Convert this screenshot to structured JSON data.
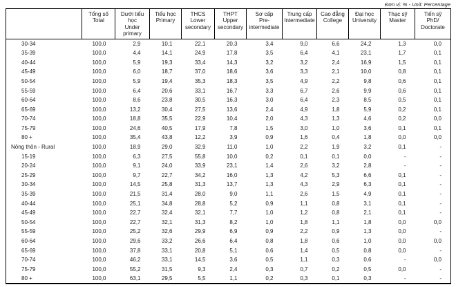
{
  "unit_label": "Đơn vị: % - Unit: Percentage",
  "table": {
    "corner": "",
    "header": [
      "Tổng số\nTotal",
      "Dưới tiểu học\nUnder\nprimary",
      "Tiểu học\nPrimary",
      "THCS\nLower\nsecondary",
      "THPT\nUpper\nsecondary",
      "Sơ cấp\nPre-\nintermediate",
      "Trung cấp\nIntermediate",
      "Cao đẳng\nCollege",
      "Đại học\nUniversity",
      "Thạc sỹ\nMaster",
      "Tiến sỹ\nPhD/\nDoctorate"
    ],
    "rows": [
      {
        "label": "30-34",
        "section": false,
        "values": [
          "100,0",
          "2,9",
          "10,1",
          "22,1",
          "20,3",
          "3,4",
          "9,0",
          "6,6",
          "24,2",
          "1,3",
          "0,0"
        ]
      },
      {
        "label": "35-39",
        "section": false,
        "values": [
          "100,0",
          "4,4",
          "14,1",
          "24,9",
          "17,8",
          "3,5",
          "6,4",
          "4,1",
          "23,1",
          "1,7",
          "0,1"
        ]
      },
      {
        "label": "40-44",
        "section": false,
        "values": [
          "100,0",
          "5,9",
          "19,3",
          "33,4",
          "14,3",
          "3,2",
          "3,2",
          "2,4",
          "16,9",
          "1,5",
          "0,1"
        ]
      },
      {
        "label": "45-49",
        "section": false,
        "values": [
          "100,0",
          "6,0",
          "18,7",
          "37,0",
          "18,6",
          "3,6",
          "3,3",
          "2,1",
          "10,0",
          "0,8",
          "0,1"
        ]
      },
      {
        "label": "50-54",
        "section": false,
        "values": [
          "100,0",
          "5,9",
          "19,4",
          "35,3",
          "18,3",
          "3,5",
          "4,9",
          "2,2",
          "9,8",
          "0,6",
          "0,1"
        ]
      },
      {
        "label": "55-59",
        "section": false,
        "values": [
          "100,0",
          "6,4",
          "20,6",
          "33,1",
          "16,7",
          "3,3",
          "6,7",
          "2,6",
          "9,9",
          "0,6",
          "0,1"
        ]
      },
      {
        "label": "60-64",
        "section": false,
        "values": [
          "100,0",
          "8,6",
          "23,8",
          "30,5",
          "16,3",
          "3,0",
          "6,4",
          "2,3",
          "8,5",
          "0,5",
          "0,1"
        ]
      },
      {
        "label": "65-69",
        "section": false,
        "values": [
          "100,0",
          "13,2",
          "30,4",
          "27,5",
          "13,6",
          "2,4",
          "4,9",
          "1,8",
          "5,9",
          "0,2",
          "0,1"
        ]
      },
      {
        "label": "70-74",
        "section": false,
        "values": [
          "100,0",
          "18,8",
          "35,5",
          "22,9",
          "10,4",
          "2,0",
          "4,3",
          "1,3",
          "4,6",
          "0,2",
          "0,0"
        ]
      },
      {
        "label": "75-79",
        "section": false,
        "values": [
          "100,0",
          "24,6",
          "40,5",
          "17,9",
          "7,8",
          "1,5",
          "3,0",
          "1,0",
          "3,6",
          "0,1",
          "0,1"
        ]
      },
      {
        "label": "80 +",
        "section": false,
        "values": [
          "100,0",
          "35,4",
          "43,8",
          "12,2",
          "3,9",
          "0,9",
          "1,6",
          "0,4",
          "1,8",
          "0,0",
          "0,0"
        ]
      },
      {
        "label": "Nông thôn - Rural",
        "section": true,
        "values": [
          "100,0",
          "18,9",
          "29,0",
          "32,9",
          "11,0",
          "1,0",
          "2,2",
          "1,9",
          "3,2",
          "0,1",
          "-"
        ]
      },
      {
        "label": "15-19",
        "section": false,
        "values": [
          "100,0",
          "6,3",
          "27,5",
          "55,8",
          "10,0",
          "0,2",
          "0,1",
          "0,1",
          "0,0",
          "-",
          "-"
        ]
      },
      {
        "label": "20-24",
        "section": false,
        "values": [
          "100,0",
          "9,1",
          "24,0",
          "33,9",
          "23,1",
          "1,4",
          "2,6",
          "3,2",
          "2,8",
          "-",
          "-"
        ]
      },
      {
        "label": "25-29",
        "section": false,
        "values": [
          "100,0",
          "9,7",
          "22,7",
          "34,2",
          "16,0",
          "1,3",
          "4,2",
          "5,3",
          "6,6",
          "0,1",
          "-"
        ]
      },
      {
        "label": "30-34",
        "section": false,
        "values": [
          "100,0",
          "14,5",
          "25,8",
          "31,3",
          "13,7",
          "1,3",
          "4,3",
          "2,9",
          "6,3",
          "0,1",
          "-"
        ]
      },
      {
        "label": "35-39",
        "section": false,
        "values": [
          "100,0",
          "21,5",
          "31,4",
          "28,0",
          "9,0",
          "1,1",
          "2,6",
          "1,5",
          "4,9",
          "0,1",
          "-"
        ]
      },
      {
        "label": "40-44",
        "section": false,
        "values": [
          "100,0",
          "25,1",
          "34,8",
          "28,8",
          "5,2",
          "0,9",
          "1,1",
          "0,8",
          "3,1",
          "0,1",
          "-"
        ]
      },
      {
        "label": "45-49",
        "section": false,
        "values": [
          "100,0",
          "22,7",
          "32,4",
          "32,1",
          "7,7",
          "1,0",
          "1,2",
          "0,8",
          "2,1",
          "0,1",
          "-"
        ]
      },
      {
        "label": "50-54",
        "section": false,
        "values": [
          "100,0",
          "22,7",
          "32,1",
          "31,3",
          "8,2",
          "1,0",
          "1,8",
          "1,1",
          "1,8",
          "0,0",
          "0,0"
        ]
      },
      {
        "label": "55-59",
        "section": false,
        "values": [
          "100,0",
          "25,2",
          "32,6",
          "29,9",
          "6,9",
          "0,9",
          "2,2",
          "0,9",
          "1,3",
          "0,0",
          "-"
        ]
      },
      {
        "label": "60-64",
        "section": false,
        "values": [
          "100,0",
          "29,6",
          "33,2",
          "26,6",
          "6,4",
          "0,8",
          "1,8",
          "0,6",
          "1,0",
          "0,0",
          "0,0"
        ]
      },
      {
        "label": "65-69",
        "section": false,
        "values": [
          "100,0",
          "37,8",
          "33,1",
          "20,8",
          "5,1",
          "0,6",
          "1,4",
          "0,5",
          "0,8",
          "0,0",
          "-"
        ]
      },
      {
        "label": "70-74",
        "section": false,
        "values": [
          "100,0",
          "46,2",
          "33,1",
          "14,5",
          "3,6",
          "0,5",
          "1,1",
          "0,3",
          "0,6",
          "-",
          "0,0"
        ]
      },
      {
        "label": "75-79",
        "section": false,
        "values": [
          "100,0",
          "55,2",
          "31,5",
          "9,3",
          "2,4",
          "0,3",
          "0,7",
          "0,2",
          "0,5",
          "0,0",
          "-"
        ]
      },
      {
        "label": "80 +",
        "section": false,
        "values": [
          "100,0",
          "63,1",
          "29,5",
          "5,5",
          "1,1",
          "0,2",
          "0,3",
          "0,1",
          "0,3",
          "-",
          "-"
        ]
      }
    ]
  }
}
